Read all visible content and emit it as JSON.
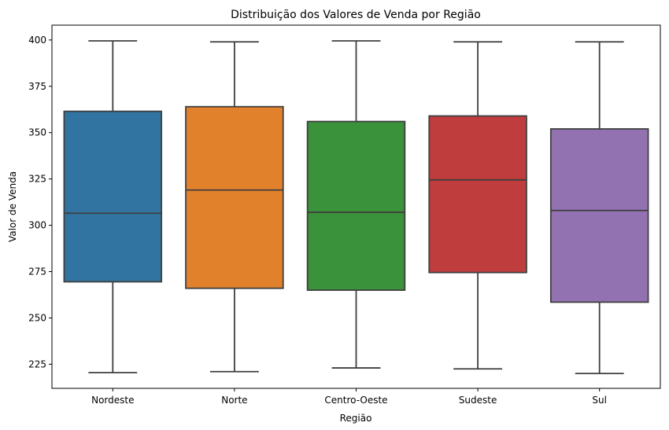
{
  "chart_data": {
    "type": "box",
    "title": "Distribuição dos Valores de Venda por Região",
    "xlabel": "Região",
    "ylabel": "Valor de Venda",
    "ylim": [
      212,
      408
    ],
    "yticks": [
      225,
      250,
      275,
      300,
      325,
      350,
      375,
      400
    ],
    "grid": false,
    "categories": [
      "Nordeste",
      "Norte",
      "Centro-Oeste",
      "Sudeste",
      "Sul"
    ],
    "boxes": [
      {
        "category": "Nordeste",
        "min": 220.5,
        "q1": 269.5,
        "median": 306.5,
        "q3": 361.5,
        "max": 399.5,
        "color": "#3274a1"
      },
      {
        "category": "Norte",
        "min": 221.0,
        "q1": 266.0,
        "median": 319.0,
        "q3": 364.0,
        "max": 399.0,
        "color": "#e1812c"
      },
      {
        "category": "Centro-Oeste",
        "min": 223.0,
        "q1": 265.0,
        "median": 307.0,
        "q3": 356.0,
        "max": 399.5,
        "color": "#3a923a"
      },
      {
        "category": "Sudeste",
        "min": 222.5,
        "q1": 274.5,
        "median": 324.5,
        "q3": 359.0,
        "max": 399.0,
        "color": "#c03d3e"
      },
      {
        "category": "Sul",
        "min": 220.0,
        "q1": 258.5,
        "median": 308.0,
        "q3": 352.0,
        "max": 399.0,
        "color": "#9372b2"
      }
    ],
    "line_color": "#3f3f3f"
  }
}
